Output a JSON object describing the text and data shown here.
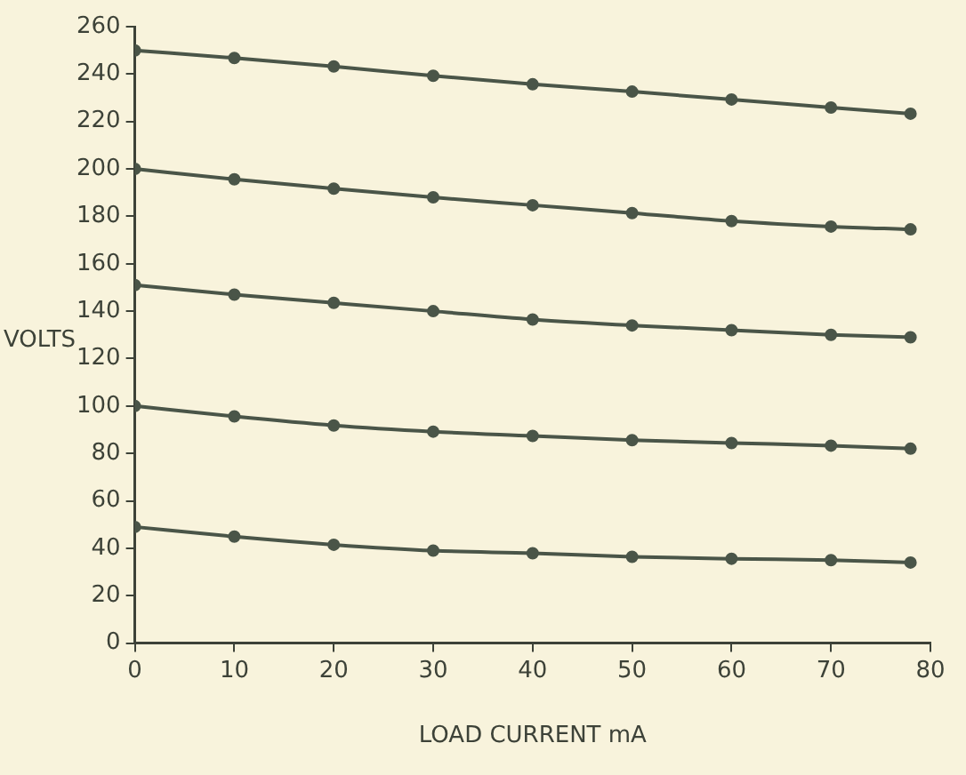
{
  "chart_data": {
    "type": "line",
    "xlabel": "LOAD CURRENT mA",
    "ylabel": "VOLTS",
    "x": [
      0,
      10,
      20,
      30,
      40,
      50,
      60,
      70,
      78
    ],
    "xlim": [
      0,
      80
    ],
    "xticks": [
      0,
      10,
      20,
      30,
      40,
      50,
      60,
      70,
      80
    ],
    "ylim": [
      0,
      260
    ],
    "yticks": [
      0,
      20,
      40,
      60,
      80,
      100,
      120,
      140,
      160,
      180,
      200,
      220,
      240,
      260
    ],
    "grid": false,
    "legend": false,
    "marker": "circle",
    "line_style": "solid",
    "series": [
      {
        "color": "#4a5548",
        "values": [
          250,
          246.8,
          243.2,
          239.3,
          235.7,
          232.6,
          229.3,
          225.9,
          223.3
        ]
      },
      {
        "color": "#4a5548",
        "values": [
          200,
          195.6,
          191.7,
          188,
          184.7,
          181.4,
          178,
          175.7,
          174.5
        ]
      },
      {
        "color": "#4a5548",
        "values": [
          151,
          147,
          143.5,
          140,
          136.5,
          134,
          132,
          130,
          129
        ]
      },
      {
        "color": "#4a5548",
        "values": [
          100,
          95.6,
          91.8,
          89.2,
          87.4,
          85.6,
          84.4,
          83.3,
          82
        ]
      },
      {
        "color": "#4a5548",
        "values": [
          49,
          44.9,
          41.5,
          39,
          37.9,
          36.4,
          35.6,
          35,
          34
        ]
      }
    ]
  }
}
